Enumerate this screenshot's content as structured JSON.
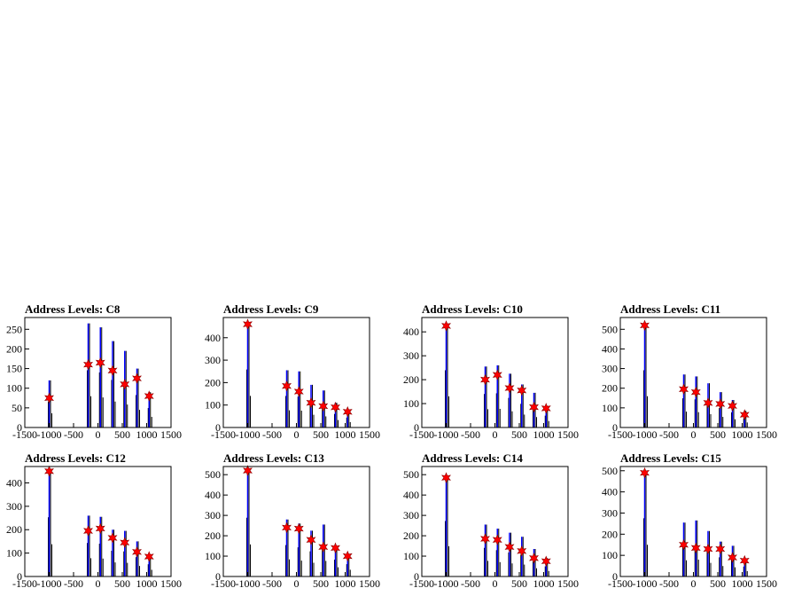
{
  "chart_data": [
    {
      "type": "bar",
      "title": "Address Levels: C8",
      "xlim": [
        -1500,
        1500
      ],
      "ylim": [
        0,
        280
      ],
      "yticks": [
        0,
        50,
        100,
        150,
        200,
        250
      ],
      "xticks": [
        -1500,
        -1000,
        -500,
        0,
        500,
        1000,
        1500
      ],
      "x": [
        -1000,
        -200,
        50,
        300,
        550,
        800,
        1050
      ],
      "y": [
        75,
        160,
        165,
        145,
        110,
        125,
        80
      ],
      "spikes": [
        [
          -1000,
          120
        ],
        [
          -200,
          265
        ],
        [
          50,
          255
        ],
        [
          300,
          220
        ],
        [
          550,
          195
        ],
        [
          800,
          150
        ],
        [
          1050,
          90
        ]
      ]
    },
    {
      "type": "bar",
      "title": "Address Levels: C9",
      "xlim": [
        -1500,
        1500
      ],
      "ylim": [
        0,
        490
      ],
      "yticks": [
        0,
        100,
        200,
        300,
        400
      ],
      "xticks": [
        -1500,
        -1000,
        -500,
        0,
        500,
        1000,
        1500
      ],
      "x": [
        -1000,
        -200,
        50,
        300,
        550,
        800,
        1050
      ],
      "y": [
        460,
        185,
        160,
        110,
        95,
        90,
        70
      ],
      "spikes": [
        [
          -1000,
          470
        ],
        [
          -200,
          255
        ],
        [
          50,
          250
        ],
        [
          300,
          190
        ],
        [
          550,
          165
        ],
        [
          800,
          110
        ],
        [
          1050,
          80
        ]
      ]
    },
    {
      "type": "bar",
      "title": "Address Levels: C10",
      "xlim": [
        -1500,
        1500
      ],
      "ylim": [
        0,
        460
      ],
      "yticks": [
        0,
        100,
        200,
        300,
        400
      ],
      "xticks": [
        -1500,
        -1000,
        -500,
        0,
        500,
        1000,
        1500
      ],
      "x": [
        -1000,
        -200,
        50,
        300,
        550,
        800,
        1050
      ],
      "y": [
        425,
        200,
        220,
        165,
        155,
        85,
        80
      ],
      "spikes": [
        [
          -1000,
          435
        ],
        [
          -200,
          255
        ],
        [
          50,
          260
        ],
        [
          300,
          225
        ],
        [
          550,
          180
        ],
        [
          800,
          145
        ],
        [
          1050,
          90
        ]
      ]
    },
    {
      "type": "bar",
      "title": "Address Levels: C11",
      "xlim": [
        -1500,
        1500
      ],
      "ylim": [
        0,
        560
      ],
      "yticks": [
        0,
        100,
        200,
        300,
        400,
        500
      ],
      "xticks": [
        -1500,
        -1000,
        -500,
        0,
        500,
        1000,
        1500
      ],
      "x": [
        -1000,
        -200,
        50,
        300,
        550,
        800,
        1050
      ],
      "y": [
        520,
        195,
        180,
        125,
        120,
        110,
        65
      ],
      "spikes": [
        [
          -1000,
          530
        ],
        [
          -200,
          270
        ],
        [
          50,
          260
        ],
        [
          300,
          225
        ],
        [
          550,
          180
        ],
        [
          800,
          140
        ],
        [
          1050,
          85
        ]
      ]
    },
    {
      "type": "bar",
      "title": "Address Levels: C12",
      "xlim": [
        -1500,
        1500
      ],
      "ylim": [
        0,
        470
      ],
      "yticks": [
        0,
        100,
        200,
        300,
        400
      ],
      "xticks": [
        -1500,
        -1000,
        -500,
        0,
        500,
        1000,
        1500
      ],
      "x": [
        -1000,
        -200,
        50,
        300,
        550,
        800,
        1050
      ],
      "y": [
        450,
        195,
        205,
        165,
        145,
        105,
        85
      ],
      "spikes": [
        [
          -1000,
          460
        ],
        [
          -200,
          260
        ],
        [
          50,
          255
        ],
        [
          300,
          200
        ],
        [
          550,
          195
        ],
        [
          800,
          150
        ],
        [
          1050,
          95
        ]
      ]
    },
    {
      "type": "bar",
      "title": "Address Levels: C13",
      "xlim": [
        -1500,
        1500
      ],
      "ylim": [
        0,
        540
      ],
      "yticks": [
        0,
        100,
        200,
        300,
        400,
        500
      ],
      "xticks": [
        -1500,
        -1000,
        -500,
        0,
        500,
        1000,
        1500
      ],
      "x": [
        -1000,
        -200,
        50,
        300,
        550,
        800,
        1050
      ],
      "y": [
        520,
        240,
        235,
        180,
        145,
        140,
        100
      ],
      "spikes": [
        [
          -1000,
          525
        ],
        [
          -200,
          280
        ],
        [
          50,
          260
        ],
        [
          300,
          225
        ],
        [
          550,
          255
        ],
        [
          800,
          150
        ],
        [
          1050,
          110
        ]
      ]
    },
    {
      "type": "bar",
      "title": "Address Levels: C14",
      "xlim": [
        -1500,
        1500
      ],
      "ylim": [
        0,
        540
      ],
      "yticks": [
        0,
        100,
        200,
        300,
        400,
        500
      ],
      "xticks": [
        -1500,
        -1000,
        -500,
        0,
        500,
        1000,
        1500
      ],
      "x": [
        -1000,
        -200,
        50,
        300,
        550,
        800,
        1050
      ],
      "y": [
        485,
        185,
        180,
        145,
        125,
        90,
        75
      ],
      "spikes": [
        [
          -1000,
          495
        ],
        [
          -200,
          255
        ],
        [
          50,
          235
        ],
        [
          300,
          215
        ],
        [
          550,
          195
        ],
        [
          800,
          135
        ],
        [
          1050,
          90
        ]
      ]
    },
    {
      "type": "bar",
      "title": "Address Levels: C15",
      "xlim": [
        -1500,
        1500
      ],
      "ylim": [
        0,
        520
      ],
      "yticks": [
        0,
        100,
        200,
        300,
        400,
        500
      ],
      "xticks": [
        -1500,
        -1000,
        -500,
        0,
        500,
        1000,
        1500
      ],
      "x": [
        -1000,
        -200,
        50,
        300,
        550,
        800,
        1050
      ],
      "y": [
        490,
        150,
        135,
        130,
        130,
        90,
        75
      ],
      "spikes": [
        [
          -1000,
          500
        ],
        [
          -200,
          255
        ],
        [
          50,
          265
        ],
        [
          300,
          215
        ],
        [
          550,
          165
        ],
        [
          800,
          145
        ],
        [
          1050,
          85
        ]
      ]
    }
  ],
  "colors": {
    "spike": "#000000",
    "fill": "#0000ff",
    "marker": "#ff0000",
    "axis": "#000000",
    "background": "#ffffff"
  }
}
